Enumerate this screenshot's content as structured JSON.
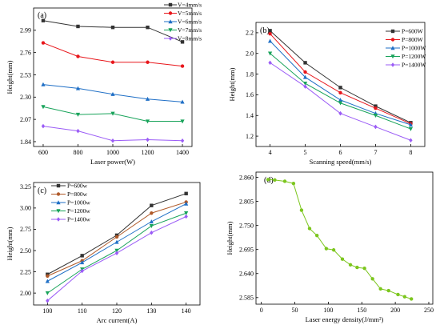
{
  "chart_data": [
    {
      "type": "line",
      "panel_label": "(a)",
      "xlabel": "Laser power(W)",
      "ylabel": "Height(mm)",
      "x": [
        600,
        800,
        1000,
        1200,
        1400
      ],
      "xticks": [
        600,
        800,
        1000,
        1200,
        1400
      ],
      "yticks": [
        1.84,
        2.07,
        2.3,
        2.53,
        2.76,
        2.99
      ],
      "ytick_labels": [
        "1.84",
        "2.07",
        "2.30",
        "2.53",
        "2.76",
        "2.99"
      ],
      "xlim": [
        545,
        1455
      ],
      "ylim": [
        1.79,
        3.22
      ],
      "grid": false,
      "legend_placement": "above plot, top-right",
      "series": [
        {
          "name": "V=4mm/s",
          "color": "#333333",
          "marker": "square",
          "values": [
            3.09,
            3.03,
            3.02,
            3.02,
            2.87
          ]
        },
        {
          "name": "V=5mm/s",
          "color": "#e8161b",
          "marker": "circle",
          "values": [
            2.86,
            2.72,
            2.66,
            2.66,
            2.62
          ]
        },
        {
          "name": "V=6mm/s",
          "color": "#1f6fc6",
          "marker": "triangle-up",
          "values": [
            2.43,
            2.39,
            2.33,
            2.28,
            2.25
          ]
        },
        {
          "name": "V=7mm/s",
          "color": "#18a35a",
          "marker": "triangle-down",
          "values": [
            2.2,
            2.12,
            2.13,
            2.05,
            2.05
          ]
        },
        {
          "name": "V=8mm/s",
          "color": "#9b5cf6",
          "marker": "diamond",
          "values": [
            2.0,
            1.95,
            1.85,
            1.86,
            1.85
          ]
        }
      ]
    },
    {
      "type": "line",
      "panel_label": "(b)",
      "xlabel": "Scanning speed(mm/s)",
      "ylabel": "Height(mm)",
      "x": [
        4,
        5,
        6,
        7,
        8
      ],
      "xticks": [
        4,
        5,
        6,
        7,
        8
      ],
      "yticks": [
        1.2,
        1.4,
        1.6,
        1.8,
        2.0,
        2.2
      ],
      "ytick_labels": [
        "1.2",
        "1.4",
        "1.6",
        "1.8",
        "2.0",
        "2.2"
      ],
      "xlim": [
        3.6,
        8.4
      ],
      "ylim": [
        1.1,
        2.3
      ],
      "grid": false,
      "legend_placement": "top-right",
      "series": [
        {
          "name": "P=600W",
          "color": "#333333",
          "marker": "square",
          "values": [
            2.22,
            1.91,
            1.67,
            1.49,
            1.33
          ]
        },
        {
          "name": "P=800W",
          "color": "#e8161b",
          "marker": "circle",
          "values": [
            2.19,
            1.82,
            1.62,
            1.47,
            1.32
          ]
        },
        {
          "name": "P=1000W",
          "color": "#1f6fc6",
          "marker": "triangle-up",
          "values": [
            2.12,
            1.77,
            1.55,
            1.42,
            1.31
          ]
        },
        {
          "name": "P=1200W",
          "color": "#18a35a",
          "marker": "triangle-down",
          "values": [
            2.0,
            1.71,
            1.52,
            1.4,
            1.27
          ]
        },
        {
          "name": "P=1400W",
          "color": "#9b5cf6",
          "marker": "diamond",
          "values": [
            1.91,
            1.68,
            1.42,
            1.29,
            1.16
          ]
        }
      ]
    },
    {
      "type": "line",
      "panel_label": "(c)",
      "xlabel": "Arc current(A)",
      "ylabel": "Height(mm)",
      "x": [
        100,
        110,
        120,
        130,
        140
      ],
      "xticks": [
        100,
        110,
        120,
        130,
        140
      ],
      "yticks": [
        2.0,
        2.25,
        2.5,
        2.75,
        3.0,
        3.25
      ],
      "ytick_labels": [
        "2.00",
        "2.25",
        "2.50",
        "2.75",
        "3.00",
        "3.25"
      ],
      "xlim": [
        96,
        144
      ],
      "ylim": [
        1.86,
        3.3
      ],
      "grid": false,
      "legend_placement": "top-left",
      "series": [
        {
          "name": "P=600w",
          "color": "#333333",
          "marker": "square",
          "values": [
            2.22,
            2.44,
            2.68,
            3.03,
            3.17
          ]
        },
        {
          "name": "P=800w",
          "color": "#b05a2a",
          "marker": "circle",
          "values": [
            2.2,
            2.38,
            2.66,
            2.94,
            3.07
          ]
        },
        {
          "name": "P=1000w",
          "color": "#1f6fc6",
          "marker": "triangle-up",
          "values": [
            2.14,
            2.36,
            2.6,
            2.84,
            3.05
          ]
        },
        {
          "name": "P=1200w",
          "color": "#18a35a",
          "marker": "triangle-down",
          "values": [
            2.0,
            2.28,
            2.5,
            2.79,
            2.94
          ]
        },
        {
          "name": "P=1400w",
          "color": "#9b5cf6",
          "marker": "diamond",
          "values": [
            1.91,
            2.26,
            2.47,
            2.71,
            2.9
          ]
        }
      ]
    },
    {
      "type": "line",
      "panel_label": "(d)",
      "xlabel": "Laser energy density(J/mm²)",
      "ylabel": "Height(mm)",
      "xticks": [
        0,
        50,
        100,
        150,
        200,
        250
      ],
      "yticks": [
        2.585,
        2.64,
        2.695,
        2.75,
        2.805,
        2.86
      ],
      "ytick_labels": [
        "2.585",
        "2.640",
        "2.695",
        "2.750",
        "2.805",
        "2.860"
      ],
      "xlim": [
        -8,
        256
      ],
      "ylim": [
        2.57,
        2.872
      ],
      "grid": false,
      "series": [
        {
          "name": "",
          "color": "#7cc61e",
          "marker": "circle",
          "x": [
            10,
            20,
            35,
            48,
            60,
            72,
            83,
            97,
            108,
            121,
            133,
            143,
            154,
            166,
            178,
            190,
            204,
            214,
            224
          ],
          "values": [
            2.855,
            2.854,
            2.851,
            2.846,
            2.785,
            2.743,
            2.727,
            2.697,
            2.694,
            2.673,
            2.66,
            2.654,
            2.652,
            2.628,
            2.605,
            2.601,
            2.592,
            2.587,
            2.582
          ]
        }
      ]
    }
  ]
}
